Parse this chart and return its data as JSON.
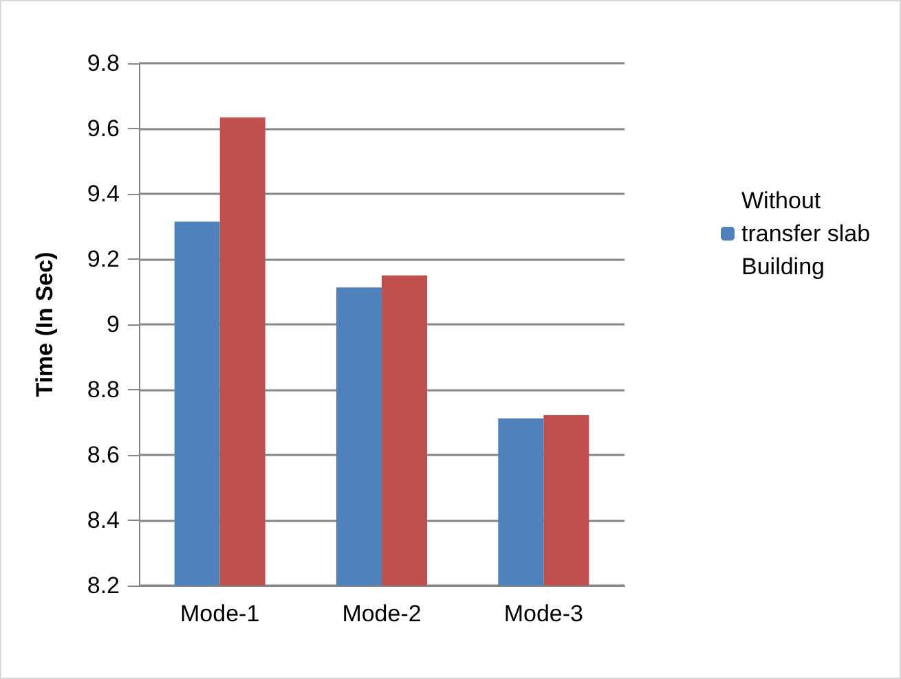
{
  "chart_data": {
    "type": "bar",
    "ylabel": "Time (In Sec)",
    "categories": [
      "Mode-1",
      "Mode-2",
      "Mode-3"
    ],
    "series": [
      {
        "name": "Without transfer slab Building",
        "color": "#4f81bd",
        "values": [
          9.315,
          9.113,
          8.712
        ]
      },
      {
        "color": "#c0504d",
        "values": [
          9.634,
          9.15,
          8.722
        ]
      }
    ],
    "ylim": [
      8.2,
      9.8
    ],
    "yticks": [
      8.2,
      8.4,
      8.6,
      8.8,
      9,
      9.2,
      9.4,
      9.6,
      9.8
    ],
    "grid": "y",
    "legend": "right"
  }
}
